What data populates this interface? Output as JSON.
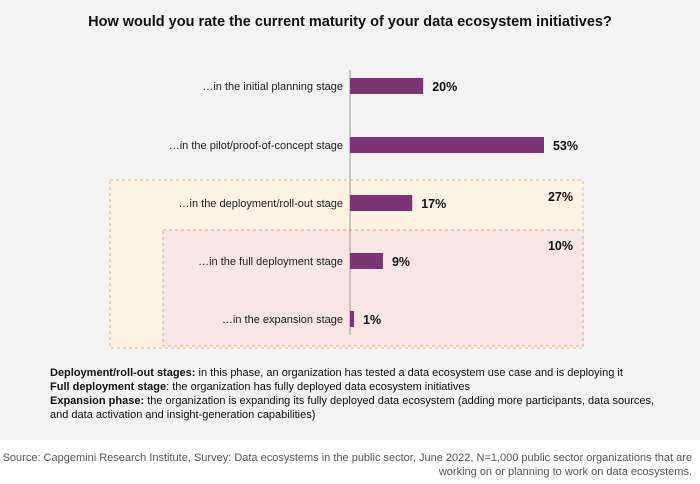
{
  "chart_data": {
    "type": "bar",
    "orientation": "horizontal",
    "title": "How would you rate the current maturity of your data ecosystem initiatives?",
    "categories": [
      "…in the initial planning stage",
      "…in the pilot/proof-of-concept stage",
      "…in the deployment/roll-out stage",
      "…in the full deployment stage",
      "…in the expansion stage"
    ],
    "values": [
      20,
      53,
      17,
      9,
      1
    ],
    "value_labels": [
      "20%",
      "53%",
      "17%",
      "9%",
      "1%"
    ],
    "xlim": [
      0,
      60
    ],
    "bar_color": "#7a3572",
    "groups": [
      {
        "label": "27%",
        "value": 27,
        "from_category": 2,
        "to_category": 4,
        "fill": "#fdf3e4",
        "stroke": "#f0b67a"
      },
      {
        "label": "10%",
        "value": 10,
        "from_category": 3,
        "to_category": 4,
        "fill": "#f8e6e6",
        "stroke": "#e6a0a0"
      }
    ]
  },
  "notes": [
    {
      "term": "Deployment/roll-out stages:",
      "text": " in this phase, an organization has tested a data ecosystem use case and is deploying it"
    },
    {
      "term": "Full deployment stage",
      "text": ": the organization has fully deployed data ecosystem initiatives"
    },
    {
      "term": "Expansion phase:",
      "text": " the organization is expanding its fully deployed data ecosystem (adding more participants, data sources, and data activation and insight-generation capabilities)"
    }
  ],
  "source": "Source: Capgemini Research Institute, Survey: Data ecosystems in the public sector, June 2022, N=1,000 public sector organizations that are working on or planning to work on data ecosystems."
}
